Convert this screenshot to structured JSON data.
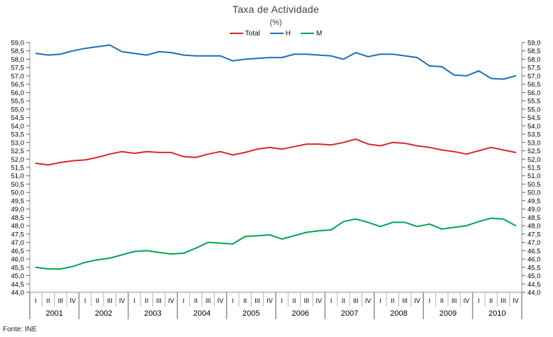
{
  "title": "Taxa de Actividade",
  "subtitle": "(%)",
  "source": "Fonte: INE",
  "legend": [
    {
      "label": "Total",
      "color": "#d7282d"
    },
    {
      "label": "H",
      "color": "#1f6fb4"
    },
    {
      "label": "M",
      "color": "#00a551"
    }
  ],
  "chart_data": {
    "type": "line",
    "title": "Taxa de Actividade",
    "subtitle": "(%)",
    "source": "Fonte: INE",
    "years": [
      2001,
      2002,
      2003,
      2004,
      2005,
      2006,
      2007,
      2008,
      2009,
      2010
    ],
    "quarter_labels": [
      "I",
      "II",
      "III",
      "IV"
    ],
    "ylim": [
      44.0,
      59.0
    ],
    "ytick_step": 0.5,
    "decimal_separator": ",",
    "grid": false,
    "legend_position": "top",
    "series": [
      {
        "name": "Total",
        "color": "#d7282d",
        "values": [
          51.75,
          51.65,
          51.8,
          51.9,
          51.95,
          52.1,
          52.3,
          52.45,
          52.35,
          52.45,
          52.4,
          52.4,
          52.15,
          52.1,
          52.3,
          52.45,
          52.25,
          52.4,
          52.6,
          52.7,
          52.6,
          52.75,
          52.9,
          52.9,
          52.85,
          53.0,
          53.2,
          52.9,
          52.8,
          53.0,
          52.95,
          52.8,
          52.7,
          52.55,
          52.45,
          52.3,
          52.5,
          52.7,
          52.55,
          52.4
        ]
      },
      {
        "name": "H",
        "color": "#1f6fb4",
        "values": [
          58.35,
          58.25,
          58.3,
          58.5,
          58.65,
          58.75,
          58.85,
          58.45,
          58.35,
          58.25,
          58.45,
          58.4,
          58.25,
          58.2,
          58.2,
          58.2,
          57.9,
          58.0,
          58.05,
          58.1,
          58.1,
          58.3,
          58.3,
          58.25,
          58.2,
          58.0,
          58.4,
          58.15,
          58.3,
          58.3,
          58.2,
          58.1,
          57.6,
          57.55,
          57.05,
          57.0,
          57.3,
          56.85,
          56.8,
          57.0
        ]
      },
      {
        "name": "M",
        "color": "#00a551",
        "values": [
          45.5,
          45.4,
          45.4,
          45.55,
          45.8,
          45.95,
          46.05,
          46.25,
          46.45,
          46.5,
          46.4,
          46.3,
          46.35,
          46.65,
          47.0,
          46.95,
          46.9,
          47.35,
          47.4,
          47.45,
          47.2,
          47.4,
          47.6,
          47.7,
          47.75,
          48.25,
          48.4,
          48.2,
          47.95,
          48.2,
          48.2,
          47.95,
          48.1,
          47.8,
          47.9,
          48.0,
          48.25,
          48.45,
          48.4,
          48.0
        ]
      }
    ]
  }
}
